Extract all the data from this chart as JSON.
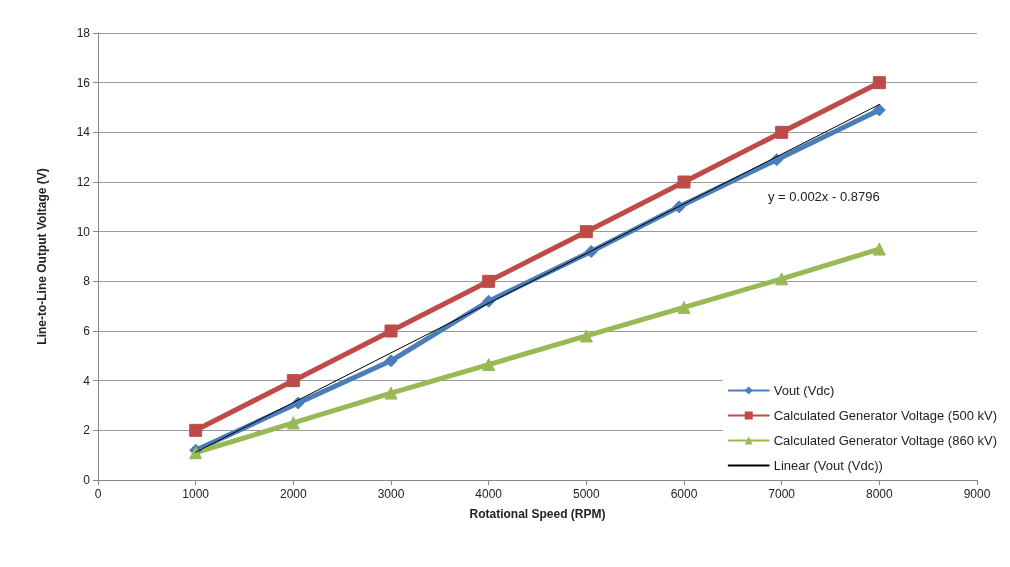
{
  "chart_data": {
    "type": "line",
    "xlabel": "Rotational Speed (RPM)",
    "ylabel": "Line-to-Line Output Voltage (V)",
    "xlim": [
      0,
      9000
    ],
    "xticks": [
      0,
      1000,
      2000,
      3000,
      4000,
      5000,
      6000,
      7000,
      8000,
      9000
    ],
    "ylim": [
      0,
      18
    ],
    "yticks": [
      0,
      2,
      4,
      6,
      8,
      10,
      12,
      14,
      16,
      18
    ],
    "grid": "y",
    "legend": "bottom right",
    "series": [
      {
        "name": "Vout (Vdc)",
        "color": "#4a7ebb",
        "marker": "diamond",
        "x": [
          1000,
          2050,
          3000,
          4000,
          5050,
          5950,
          6950,
          8000
        ],
        "values": [
          1.2,
          3.1,
          4.8,
          7.2,
          9.2,
          11.0,
          12.9,
          14.9
        ]
      },
      {
        "name": "Calculated Generator Voltage (500 kV)",
        "color": "#be4b48",
        "marker": "square",
        "x": [
          1000,
          2000,
          3000,
          4000,
          5000,
          6000,
          7000,
          8000
        ],
        "values": [
          2,
          4,
          6,
          8,
          10,
          12,
          14,
          16
        ]
      },
      {
        "name": "Calculated Generator Voltage (860 kV)",
        "color": "#98b954",
        "marker": "triangle",
        "x": [
          1000,
          2000,
          3000,
          4000,
          5000,
          6000,
          7000,
          8000
        ],
        "values": [
          1.1,
          2.3,
          3.5,
          4.65,
          5.8,
          6.95,
          8.1,
          9.3
        ]
      },
      {
        "name": "Linear (Vout (Vdc))",
        "color": "#000000",
        "marker": "none",
        "x": [
          1000,
          8000
        ],
        "values": [
          1.12,
          15.12
        ]
      }
    ],
    "annotations": [
      "y = 0.002x - 0.8796"
    ]
  }
}
